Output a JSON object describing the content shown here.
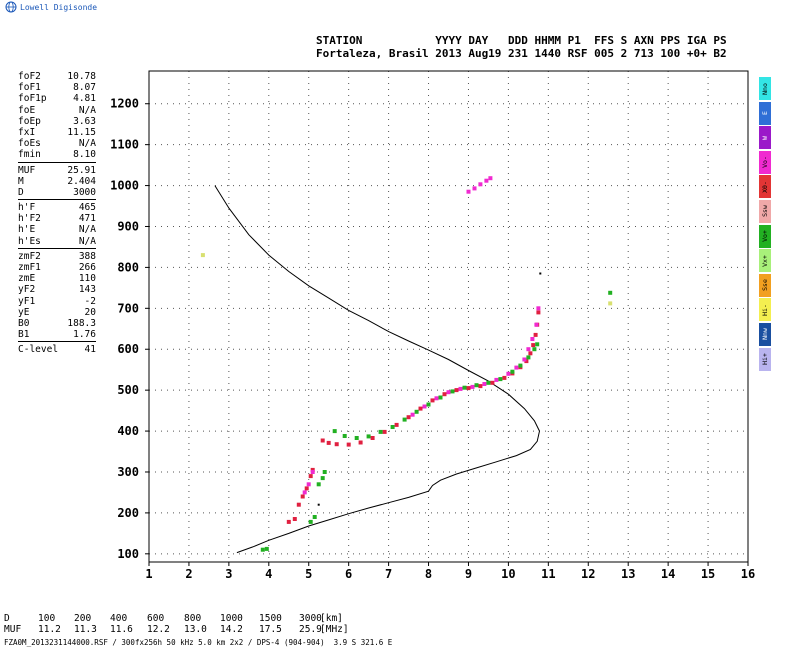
{
  "header": {
    "logo_text": "Lowell Digisonde",
    "station_line1": "STATION           YYYY DAY   DDD HHMM P1  FFS S AXN PPS IGA PS",
    "station_line2": "Fortaleza, Brasil 2013 Aug19 231 1440 RSF 005 2 713 100 +0+ B2"
  },
  "params": [
    {
      "k": "foF2",
      "v": "10.78"
    },
    {
      "k": "foF1",
      "v": "8.07"
    },
    {
      "k": "foF1p",
      "v": "4.81"
    },
    {
      "k": "foE",
      "v": "N/A"
    },
    {
      "k": "foEp",
      "v": "3.63"
    },
    {
      "k": "fxI",
      "v": "11.15"
    },
    {
      "k": "foEs",
      "v": "N/A"
    },
    {
      "k": "fmin",
      "v": "8.10",
      "sep_after": true
    },
    {
      "k": "MUF",
      "v": "25.91"
    },
    {
      "k": "M",
      "v": "2.404"
    },
    {
      "k": "D",
      "v": "3000",
      "sep_after": true
    },
    {
      "k": "h'F",
      "v": "465"
    },
    {
      "k": "h'F2",
      "v": "471"
    },
    {
      "k": "h'E",
      "v": "N/A"
    },
    {
      "k": "h'Es",
      "v": "N/A",
      "sep_after": true
    },
    {
      "k": "zmF2",
      "v": "388"
    },
    {
      "k": "zmF1",
      "v": "266"
    },
    {
      "k": "zmE",
      "v": "110"
    },
    {
      "k": "yF2",
      "v": "143"
    },
    {
      "k": "yF1",
      "v": "-2"
    },
    {
      "k": "yE",
      "v": "20"
    },
    {
      "k": "B0",
      "v": "188.3"
    },
    {
      "k": "B1",
      "v": "1.76",
      "sep_after": true
    },
    {
      "k": "C-level",
      "v": "41"
    }
  ],
  "legend": [
    {
      "label": "Nno",
      "color": "#33e5e5"
    },
    {
      "label": "E",
      "color": "#2f6fd6"
    },
    {
      "label": "W",
      "color": "#9b19c9"
    },
    {
      "label": "Vo-",
      "color": "#f02ad0"
    },
    {
      "label": "X0-",
      "color": "#e33535"
    },
    {
      "label": "Ssw",
      "color": "#f0a8a8"
    },
    {
      "label": "Vo+",
      "color": "#22b022"
    },
    {
      "label": "Vx+",
      "color": "#a8f07a"
    },
    {
      "label": "Sse",
      "color": "#f2a020"
    },
    {
      "label": "Hi-",
      "color": "#f4ef50"
    },
    {
      "label": "Nnw",
      "color": "#1a4fa0"
    },
    {
      "label": "Hi+",
      "color": "#b9b4ef"
    }
  ],
  "muf_table": {
    "d_label": "D",
    "d_values": [
      "100",
      "200",
      "400",
      "600",
      "800",
      "1000",
      "1500",
      "3000"
    ],
    "d_unit": "[km]",
    "muf_label": "MUF",
    "muf_values": [
      "11.2",
      "11.3",
      "11.6",
      "12.2",
      "13.0",
      "14.2",
      "17.5",
      "25.9"
    ],
    "muf_unit": "[MHz]"
  },
  "footer": "FZA0M_2013231144000.RSF / 300fx256h 50 kHz 5.0 km 2x2 / DPS-4 (904-904)  3.9 S 321.6 E",
  "chart_data": {
    "type": "scatter",
    "xlim": [
      1,
      16
    ],
    "ylim": [
      80,
      1280
    ],
    "x_ticks": [
      1,
      2,
      3,
      4,
      5,
      6,
      7,
      8,
      9,
      10,
      11,
      12,
      13,
      14,
      15,
      16
    ],
    "y_ticks": [
      100,
      200,
      300,
      400,
      500,
      600,
      700,
      800,
      900,
      1000,
      1100,
      1200
    ],
    "grid": "dotted",
    "series": [
      {
        "color": "#e02040",
        "mode": "O",
        "points": [
          [
            5.35,
            377
          ],
          [
            5.5,
            371
          ],
          [
            5.7,
            368
          ],
          [
            6.0,
            367
          ],
          [
            6.3,
            372
          ],
          [
            6.6,
            383
          ],
          [
            6.9,
            398
          ],
          [
            7.2,
            415
          ],
          [
            7.5,
            434
          ],
          [
            7.8,
            455
          ],
          [
            8.1,
            475
          ],
          [
            8.4,
            490
          ],
          [
            8.7,
            500
          ],
          [
            9.0,
            505
          ],
          [
            9.3,
            510
          ],
          [
            9.6,
            518
          ],
          [
            9.9,
            530
          ],
          [
            10.1,
            541
          ],
          [
            10.3,
            556
          ],
          [
            10.45,
            571
          ],
          [
            10.55,
            590
          ],
          [
            10.62,
            610
          ],
          [
            10.68,
            635
          ],
          [
            10.72,
            660
          ],
          [
            10.75,
            690
          ],
          [
            4.5,
            178
          ],
          [
            4.65,
            185
          ],
          [
            4.75,
            220
          ],
          [
            4.85,
            240
          ],
          [
            4.95,
            260
          ],
          [
            5.05,
            290
          ],
          [
            5.1,
            305
          ]
        ]
      },
      {
        "color": "#f02ad0",
        "mode": "Vo-",
        "points": [
          [
            7.6,
            440
          ],
          [
            7.9,
            460
          ],
          [
            8.2,
            480
          ],
          [
            8.5,
            495
          ],
          [
            8.8,
            503
          ],
          [
            9.1,
            508
          ],
          [
            9.4,
            515
          ],
          [
            9.7,
            525
          ],
          [
            10.0,
            540
          ],
          [
            10.2,
            555
          ],
          [
            10.4,
            575
          ],
          [
            10.5,
            600
          ],
          [
            10.6,
            625
          ],
          [
            10.7,
            660
          ],
          [
            10.75,
            700
          ],
          [
            9.0,
            985
          ],
          [
            9.15,
            993
          ],
          [
            9.3,
            1003
          ],
          [
            9.45,
            1012
          ],
          [
            9.55,
            1018
          ],
          [
            4.9,
            250
          ],
          [
            5.0,
            270
          ],
          [
            5.1,
            300
          ]
        ]
      },
      {
        "color": "#22b022",
        "mode": "X",
        "points": [
          [
            5.65,
            400
          ],
          [
            5.9,
            388
          ],
          [
            6.2,
            383
          ],
          [
            6.5,
            387
          ],
          [
            6.8,
            398
          ],
          [
            7.1,
            410
          ],
          [
            7.4,
            428
          ],
          [
            7.7,
            447
          ],
          [
            8.0,
            465
          ],
          [
            8.3,
            482
          ],
          [
            8.6,
            497
          ],
          [
            8.9,
            506
          ],
          [
            9.2,
            512
          ],
          [
            9.5,
            518
          ],
          [
            9.8,
            527
          ],
          [
            10.1,
            545
          ],
          [
            10.3,
            560
          ],
          [
            10.5,
            580
          ],
          [
            10.65,
            600
          ],
          [
            10.72,
            612
          ],
          [
            3.85,
            110
          ],
          [
            3.95,
            112
          ],
          [
            5.05,
            178
          ],
          [
            5.15,
            190
          ],
          [
            5.25,
            270
          ],
          [
            5.35,
            285
          ],
          [
            5.4,
            300
          ],
          [
            12.55,
            738
          ]
        ]
      },
      {
        "color": "#d8e070",
        "mode": "other",
        "points": [
          [
            2.35,
            830
          ],
          [
            12.55,
            712
          ]
        ]
      },
      {
        "color": "#000000",
        "mode": "marker",
        "points": [
          [
            5.25,
            220
          ],
          [
            10.8,
            785
          ]
        ]
      }
    ],
    "profile": {
      "color": "#000000",
      "points": [
        [
          2.65,
          1000
        ],
        [
          3.0,
          945
        ],
        [
          3.5,
          880
        ],
        [
          4.0,
          830
        ],
        [
          4.5,
          790
        ],
        [
          5.0,
          755
        ],
        [
          5.5,
          725
        ],
        [
          6.0,
          695
        ],
        [
          6.5,
          670
        ],
        [
          7.0,
          643
        ],
        [
          7.5,
          620
        ],
        [
          8.0,
          598
        ],
        [
          8.5,
          575
        ],
        [
          9.0,
          548
        ],
        [
          9.5,
          522
        ],
        [
          10.0,
          490
        ],
        [
          10.4,
          455
        ],
        [
          10.65,
          425
        ],
        [
          10.78,
          400
        ],
        [
          10.72,
          375
        ],
        [
          10.55,
          355
        ],
        [
          10.2,
          340
        ],
        [
          9.7,
          325
        ],
        [
          9.2,
          310
        ],
        [
          8.7,
          295
        ],
        [
          8.3,
          280
        ],
        [
          8.1,
          267
        ],
        [
          8.0,
          253
        ],
        [
          7.5,
          238
        ],
        [
          7.0,
          225
        ],
        [
          6.5,
          212
        ],
        [
          6.0,
          198
        ],
        [
          5.5,
          183
        ],
        [
          5.0,
          168
        ],
        [
          4.5,
          150
        ],
        [
          4.0,
          133
        ],
        [
          3.6,
          117
        ],
        [
          3.2,
          103
        ]
      ]
    }
  }
}
